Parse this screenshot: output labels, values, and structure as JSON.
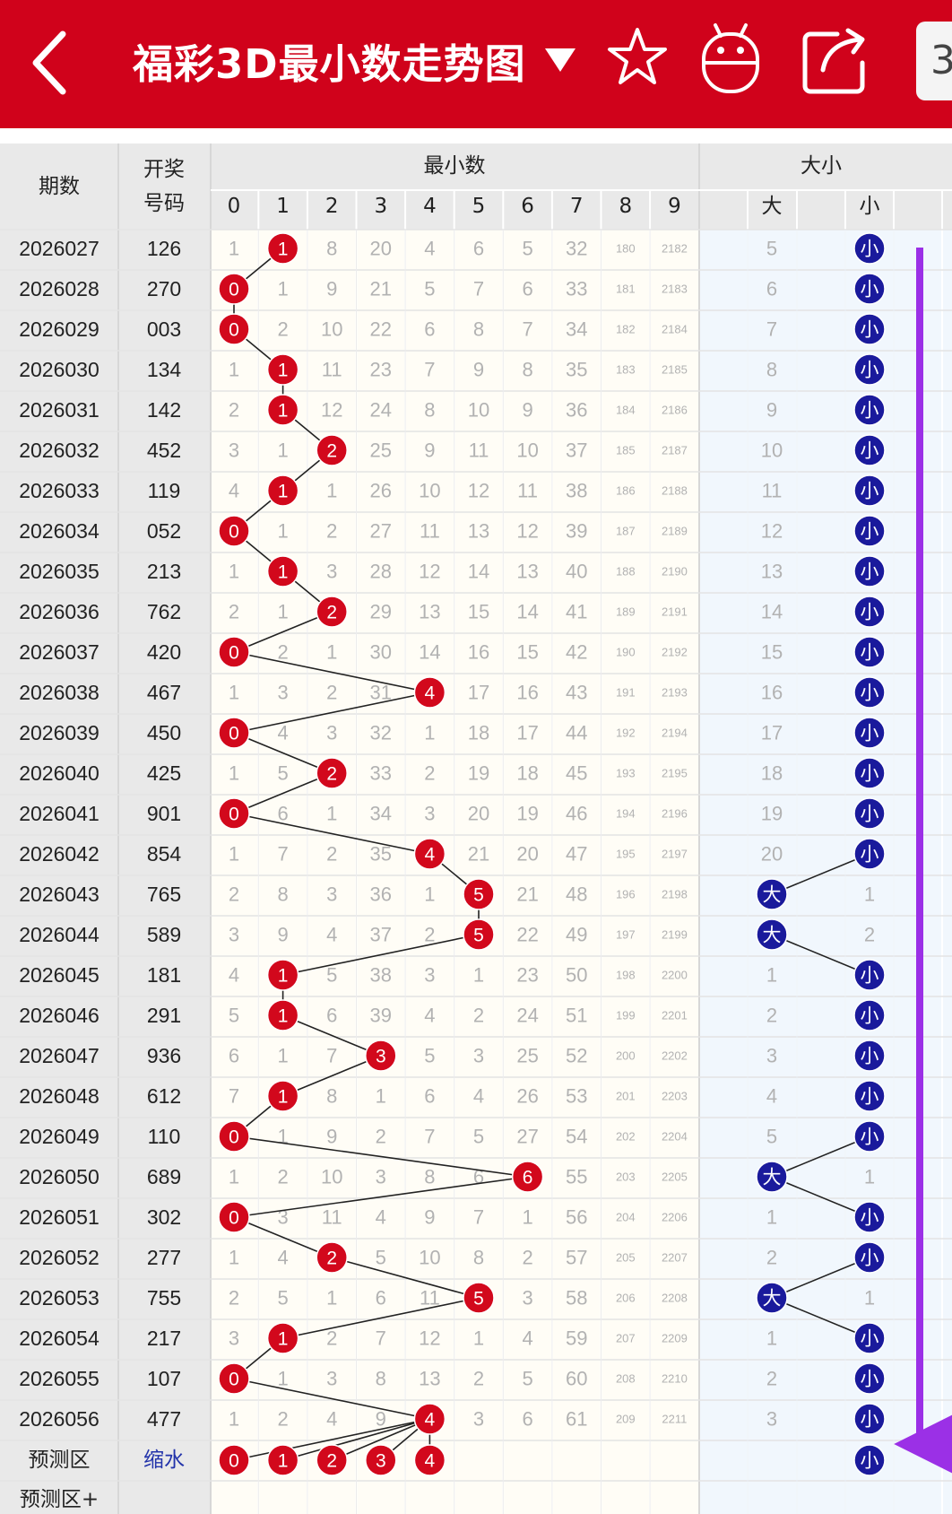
{
  "header": {
    "title": "福彩3D最小数走势图",
    "badge": "3"
  },
  "columns": {
    "period": "期数",
    "draw_line1": "开奖",
    "draw_line2": "号码",
    "group_min": "最小数",
    "group_size": "大小",
    "digits": [
      "0",
      "1",
      "2",
      "3",
      "4",
      "5",
      "6",
      "7",
      "8",
      "9"
    ],
    "big": "大",
    "small": "小"
  },
  "rows": [
    {
      "period": "2026027",
      "num": "126",
      "min": 1,
      "size": "小",
      "miss": [
        1,
        null,
        8,
        20,
        4,
        6,
        5,
        32,
        180,
        2182
      ],
      "bigmiss": 5,
      "smallmiss": null
    },
    {
      "period": "2026028",
      "num": "270",
      "min": 0,
      "size": "小",
      "miss": [
        null,
        1,
        9,
        21,
        5,
        7,
        6,
        33,
        181,
        2183
      ],
      "bigmiss": 6,
      "smallmiss": null
    },
    {
      "period": "2026029",
      "num": "003",
      "min": 0,
      "size": "小",
      "miss": [
        null,
        2,
        10,
        22,
        6,
        8,
        7,
        34,
        182,
        2184
      ],
      "bigmiss": 7,
      "smallmiss": null
    },
    {
      "period": "2026030",
      "num": "134",
      "min": 1,
      "size": "小",
      "miss": [
        1,
        null,
        11,
        23,
        7,
        9,
        8,
        35,
        183,
        2185
      ],
      "bigmiss": 8,
      "smallmiss": null
    },
    {
      "period": "2026031",
      "num": "142",
      "min": 1,
      "size": "小",
      "miss": [
        2,
        null,
        12,
        24,
        8,
        10,
        9,
        36,
        184,
        2186
      ],
      "bigmiss": 9,
      "smallmiss": null
    },
    {
      "period": "2026032",
      "num": "452",
      "min": 2,
      "size": "小",
      "miss": [
        3,
        1,
        null,
        25,
        9,
        11,
        10,
        37,
        185,
        2187
      ],
      "bigmiss": 10,
      "smallmiss": null
    },
    {
      "period": "2026033",
      "num": "119",
      "min": 1,
      "size": "小",
      "miss": [
        4,
        null,
        1,
        26,
        10,
        12,
        11,
        38,
        186,
        2188
      ],
      "bigmiss": 11,
      "smallmiss": null
    },
    {
      "period": "2026034",
      "num": "052",
      "min": 0,
      "size": "小",
      "miss": [
        null,
        1,
        2,
        27,
        11,
        13,
        12,
        39,
        187,
        2189
      ],
      "bigmiss": 12,
      "smallmiss": null
    },
    {
      "period": "2026035",
      "num": "213",
      "min": 1,
      "size": "小",
      "miss": [
        1,
        null,
        3,
        28,
        12,
        14,
        13,
        40,
        188,
        2190
      ],
      "bigmiss": 13,
      "smallmiss": null
    },
    {
      "period": "2026036",
      "num": "762",
      "min": 2,
      "size": "小",
      "miss": [
        2,
        1,
        null,
        29,
        13,
        15,
        14,
        41,
        189,
        2191
      ],
      "bigmiss": 14,
      "smallmiss": null
    },
    {
      "period": "2026037",
      "num": "420",
      "min": 0,
      "size": "小",
      "miss": [
        null,
        2,
        1,
        30,
        14,
        16,
        15,
        42,
        190,
        2192
      ],
      "bigmiss": 15,
      "smallmiss": null
    },
    {
      "period": "2026038",
      "num": "467",
      "min": 4,
      "size": "小",
      "miss": [
        1,
        3,
        2,
        31,
        null,
        17,
        16,
        43,
        191,
        2193
      ],
      "bigmiss": 16,
      "smallmiss": null
    },
    {
      "period": "2026039",
      "num": "450",
      "min": 0,
      "size": "小",
      "miss": [
        null,
        4,
        3,
        32,
        1,
        18,
        17,
        44,
        192,
        2194
      ],
      "bigmiss": 17,
      "smallmiss": null
    },
    {
      "period": "2026040",
      "num": "425",
      "min": 2,
      "size": "小",
      "miss": [
        1,
        5,
        null,
        33,
        2,
        19,
        18,
        45,
        193,
        2195
      ],
      "bigmiss": 18,
      "smallmiss": null
    },
    {
      "period": "2026041",
      "num": "901",
      "min": 0,
      "size": "小",
      "miss": [
        null,
        6,
        1,
        34,
        3,
        20,
        19,
        46,
        194,
        2196
      ],
      "bigmiss": 19,
      "smallmiss": null
    },
    {
      "period": "2026042",
      "num": "854",
      "min": 4,
      "size": "小",
      "miss": [
        1,
        7,
        2,
        35,
        null,
        21,
        20,
        47,
        195,
        2197
      ],
      "bigmiss": 20,
      "smallmiss": null
    },
    {
      "period": "2026043",
      "num": "765",
      "min": 5,
      "size": "大",
      "miss": [
        2,
        8,
        3,
        36,
        1,
        null,
        21,
        48,
        196,
        2198
      ],
      "bigmiss": null,
      "smallmiss": 1
    },
    {
      "period": "2026044",
      "num": "589",
      "min": 5,
      "size": "大",
      "miss": [
        3,
        9,
        4,
        37,
        2,
        null,
        22,
        49,
        197,
        2199
      ],
      "bigmiss": null,
      "smallmiss": 2
    },
    {
      "period": "2026045",
      "num": "181",
      "min": 1,
      "size": "小",
      "miss": [
        4,
        null,
        5,
        38,
        3,
        1,
        23,
        50,
        198,
        2200
      ],
      "bigmiss": 1,
      "smallmiss": null
    },
    {
      "period": "2026046",
      "num": "291",
      "min": 1,
      "size": "小",
      "miss": [
        5,
        null,
        6,
        39,
        4,
        2,
        24,
        51,
        199,
        2201
      ],
      "bigmiss": 2,
      "smallmiss": null
    },
    {
      "period": "2026047",
      "num": "936",
      "min": 3,
      "size": "小",
      "miss": [
        6,
        1,
        7,
        null,
        5,
        3,
        25,
        52,
        200,
        2202
      ],
      "bigmiss": 3,
      "smallmiss": null
    },
    {
      "period": "2026048",
      "num": "612",
      "min": 1,
      "size": "小",
      "miss": [
        7,
        null,
        8,
        1,
        6,
        4,
        26,
        53,
        201,
        2203
      ],
      "bigmiss": 4,
      "smallmiss": null
    },
    {
      "period": "2026049",
      "num": "110",
      "min": 0,
      "size": "小",
      "miss": [
        null,
        1,
        9,
        2,
        7,
        5,
        27,
        54,
        202,
        2204
      ],
      "bigmiss": 5,
      "smallmiss": null
    },
    {
      "period": "2026050",
      "num": "689",
      "min": 6,
      "size": "大",
      "miss": [
        1,
        2,
        10,
        3,
        8,
        6,
        null,
        55,
        203,
        2205
      ],
      "bigmiss": null,
      "smallmiss": 1
    },
    {
      "period": "2026051",
      "num": "302",
      "min": 0,
      "size": "小",
      "miss": [
        null,
        3,
        11,
        4,
        9,
        7,
        1,
        56,
        204,
        2206
      ],
      "bigmiss": 1,
      "smallmiss": null
    },
    {
      "period": "2026052",
      "num": "277",
      "min": 2,
      "size": "小",
      "miss": [
        1,
        4,
        null,
        5,
        10,
        8,
        2,
        57,
        205,
        2207
      ],
      "bigmiss": 2,
      "smallmiss": null
    },
    {
      "period": "2026053",
      "num": "755",
      "min": 5,
      "size": "大",
      "miss": [
        2,
        5,
        1,
        6,
        11,
        null,
        3,
        58,
        206,
        2208
      ],
      "bigmiss": null,
      "smallmiss": 1
    },
    {
      "period": "2026054",
      "num": "217",
      "min": 1,
      "size": "小",
      "miss": [
        3,
        null,
        2,
        7,
        12,
        1,
        4,
        59,
        207,
        2209
      ],
      "bigmiss": 1,
      "smallmiss": null
    },
    {
      "period": "2026055",
      "num": "107",
      "min": 0,
      "size": "小",
      "miss": [
        null,
        1,
        3,
        8,
        13,
        2,
        5,
        60,
        208,
        2210
      ],
      "bigmiss": 2,
      "smallmiss": null
    },
    {
      "period": "2026056",
      "num": "477",
      "min": 4,
      "size": "小",
      "miss": [
        1,
        2,
        4,
        9,
        null,
        3,
        6,
        61,
        209,
        2211
      ],
      "bigmiss": 3,
      "smallmiss": null
    }
  ],
  "predict": {
    "label": "预测区",
    "value": "缩水",
    "balls": [
      "0",
      "1",
      "2",
      "3",
      "4"
    ],
    "size": "小"
  },
  "predict_plus": {
    "label": "预测区+"
  },
  "colors": {
    "brand_red": "#d0021b",
    "ball_red": "#d2081c",
    "ball_blue": "#1a1a9c",
    "arrow": "#9b30e6",
    "predict_text": "#2233aa"
  }
}
